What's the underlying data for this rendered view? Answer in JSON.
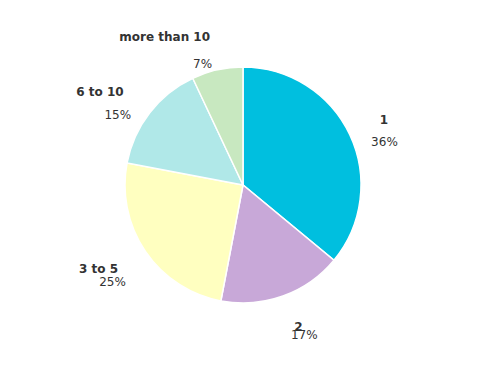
{
  "chart_data": {
    "type": "pie",
    "categories": [
      "1",
      "2",
      "3 to 5",
      "6 to 10",
      "more than 10"
    ],
    "values": [
      36,
      17,
      25,
      15,
      7
    ],
    "value_labels": [
      "36%",
      "17%",
      "25%",
      "15%",
      "7%"
    ],
    "colors": [
      "#00BFDF",
      "#C8A8D8",
      "#FFFFC0",
      "#B0E8E8",
      "#C8E8C0"
    ],
    "data_labels": true
  }
}
